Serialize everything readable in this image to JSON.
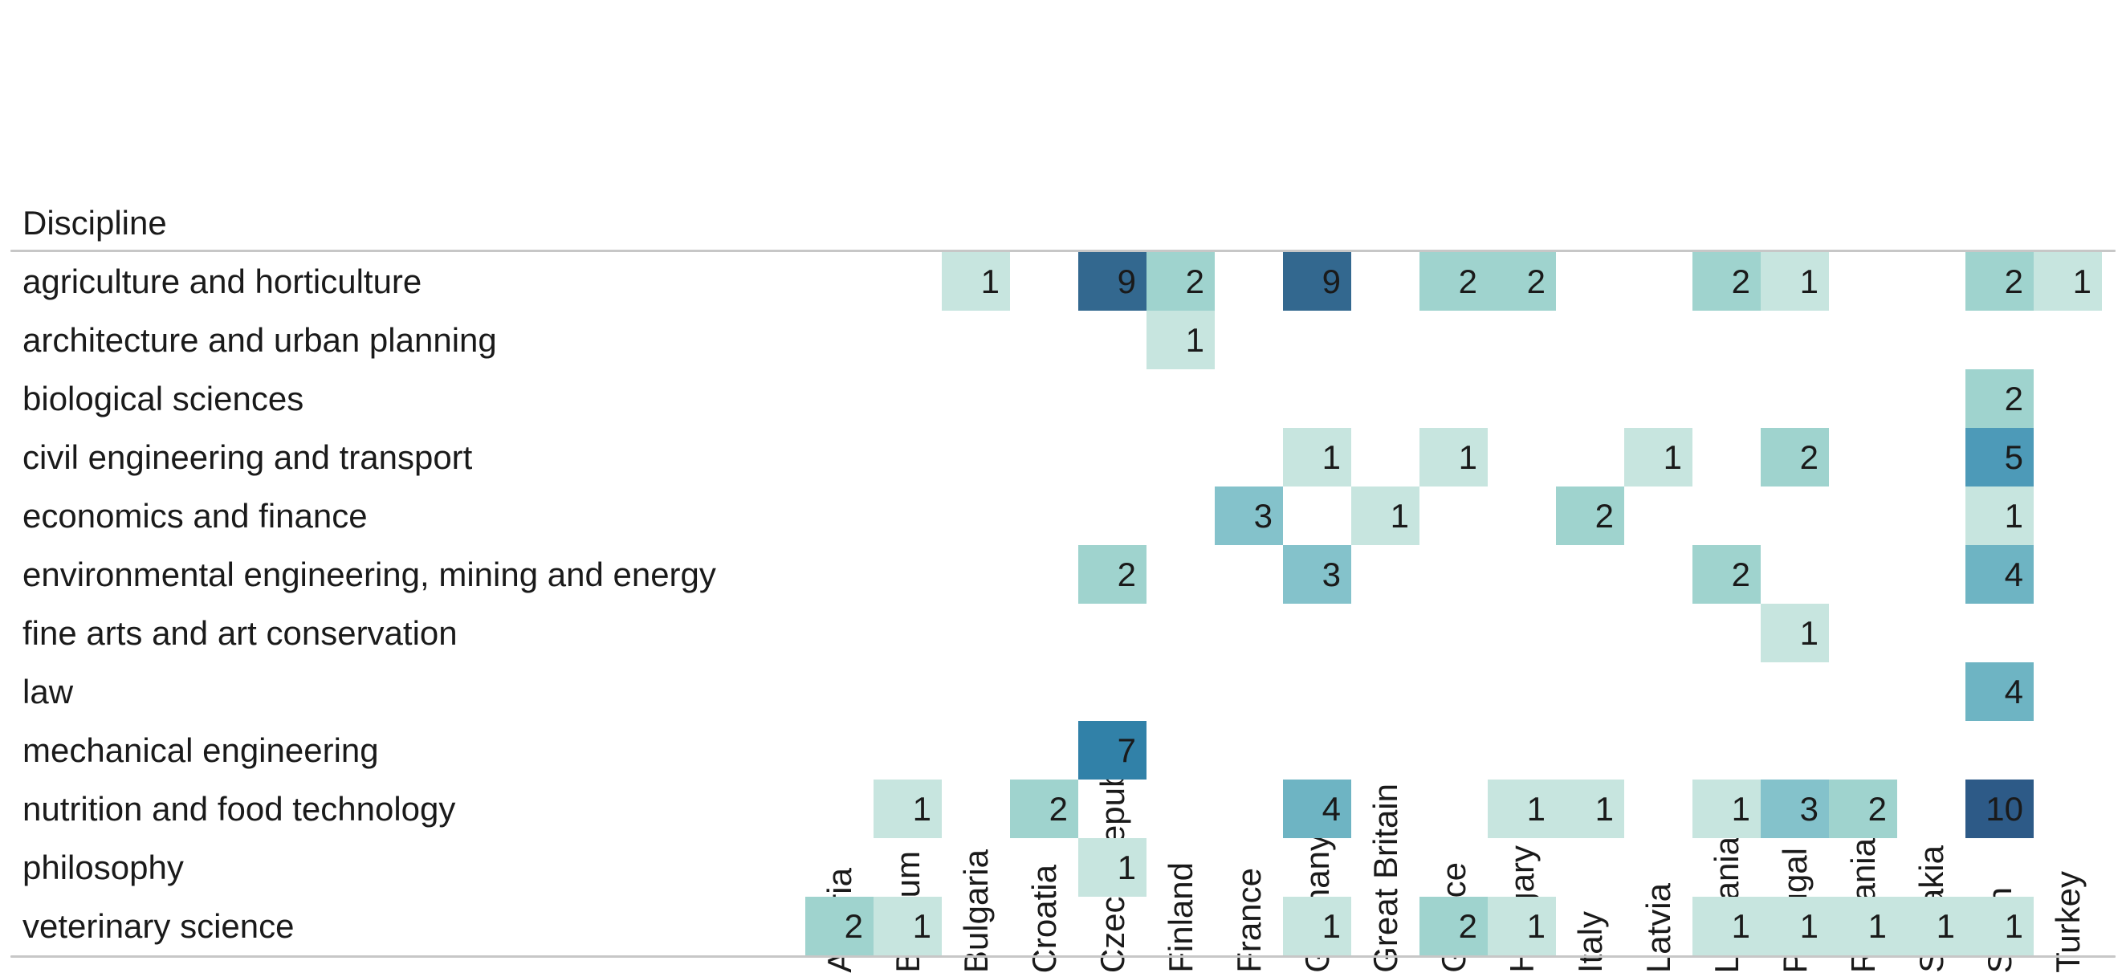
{
  "chart_data": {
    "type": "heatmap",
    "title": "",
    "row_header_label": "Discipline",
    "legend_position": "none",
    "grid": false,
    "columns": [
      "Austria",
      "Belgium",
      "Bulgaria",
      "Croatia",
      "Czech Republic",
      "Finland",
      "France",
      "Germany",
      "Great Britain",
      "Greece",
      "Hungary",
      "Italy",
      "Latvia",
      "Lithuania",
      "Portugal",
      "Romania",
      "Slovakia",
      "Spain",
      "Turkey"
    ],
    "rows": [
      "agriculture and horticulture",
      "architecture and urban planning",
      "biological sciences",
      "civil engineering and transport",
      "economics and finance",
      "environmental engineering, mining and energy",
      "fine arts and art conservation",
      "law",
      "mechanical engineering",
      "nutrition and food technology",
      "philosophy",
      "veterinary science"
    ],
    "values": [
      [
        null,
        null,
        1,
        null,
        9,
        2,
        null,
        9,
        null,
        2,
        2,
        null,
        null,
        2,
        1,
        null,
        null,
        2,
        1
      ],
      [
        null,
        null,
        null,
        null,
        null,
        1,
        null,
        null,
        null,
        null,
        null,
        null,
        null,
        null,
        null,
        null,
        null,
        null,
        null
      ],
      [
        null,
        null,
        null,
        null,
        null,
        null,
        null,
        null,
        null,
        null,
        null,
        null,
        null,
        null,
        null,
        null,
        null,
        2,
        null
      ],
      [
        null,
        null,
        null,
        null,
        null,
        null,
        null,
        1,
        null,
        1,
        null,
        null,
        1,
        null,
        2,
        null,
        null,
        5,
        null
      ],
      [
        null,
        null,
        null,
        null,
        null,
        null,
        3,
        null,
        1,
        null,
        null,
        2,
        null,
        null,
        null,
        null,
        null,
        1,
        null
      ],
      [
        null,
        null,
        null,
        null,
        2,
        null,
        null,
        3,
        null,
        null,
        null,
        null,
        null,
        2,
        null,
        null,
        null,
        4,
        null
      ],
      [
        null,
        null,
        null,
        null,
        null,
        null,
        null,
        null,
        null,
        null,
        null,
        null,
        null,
        null,
        1,
        null,
        null,
        null,
        null
      ],
      [
        null,
        null,
        null,
        null,
        null,
        null,
        null,
        null,
        null,
        null,
        null,
        null,
        null,
        null,
        null,
        null,
        null,
        4,
        null
      ],
      [
        null,
        null,
        null,
        null,
        7,
        null,
        null,
        null,
        null,
        null,
        null,
        null,
        null,
        null,
        null,
        null,
        null,
        null,
        null
      ],
      [
        null,
        1,
        null,
        2,
        null,
        null,
        null,
        4,
        null,
        null,
        1,
        1,
        null,
        1,
        3,
        2,
        null,
        10,
        null
      ],
      [
        null,
        null,
        null,
        null,
        1,
        null,
        null,
        null,
        null,
        null,
        null,
        null,
        null,
        null,
        null,
        null,
        null,
        null,
        null
      ],
      [
        2,
        1,
        null,
        null,
        null,
        null,
        null,
        1,
        null,
        2,
        1,
        null,
        null,
        1,
        1,
        1,
        1,
        1,
        null
      ]
    ],
    "value_range": [
      1,
      10
    ],
    "palette": {
      "1": "#c7e5df",
      "2": "#9fd3ce",
      "3": "#84c2cb",
      "4": "#6eb4c3",
      "5": "#4d9ab8",
      "7": "#3181a8",
      "9": "#33688f",
      "10": "#2d5a87"
    },
    "text_color": "#1a1a1a",
    "rule_color": "#c7c7c7",
    "background": "#ffffff"
  }
}
